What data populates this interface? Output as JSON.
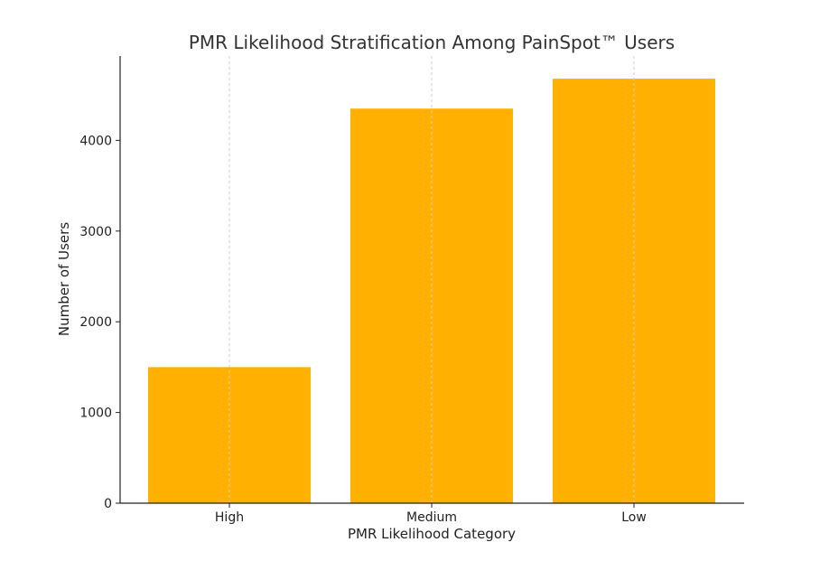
{
  "chart_data": {
    "type": "bar",
    "title": "PMR Likelihood Stratification Among PainSpot™ Users",
    "xlabel": "PMR Likelihood Category",
    "ylabel": "Number of Users",
    "categories": [
      "High",
      "Medium",
      "Low"
    ],
    "values": [
      1500,
      4350,
      4680
    ],
    "ylim": [
      0,
      4930
    ],
    "yticks": [
      0,
      1000,
      2000,
      3000,
      4000
    ],
    "grid": "vertical dashed at category centers",
    "bar_color": "#FFB000",
    "axis_color": "#222222",
    "grid_color": "#cccccc"
  }
}
